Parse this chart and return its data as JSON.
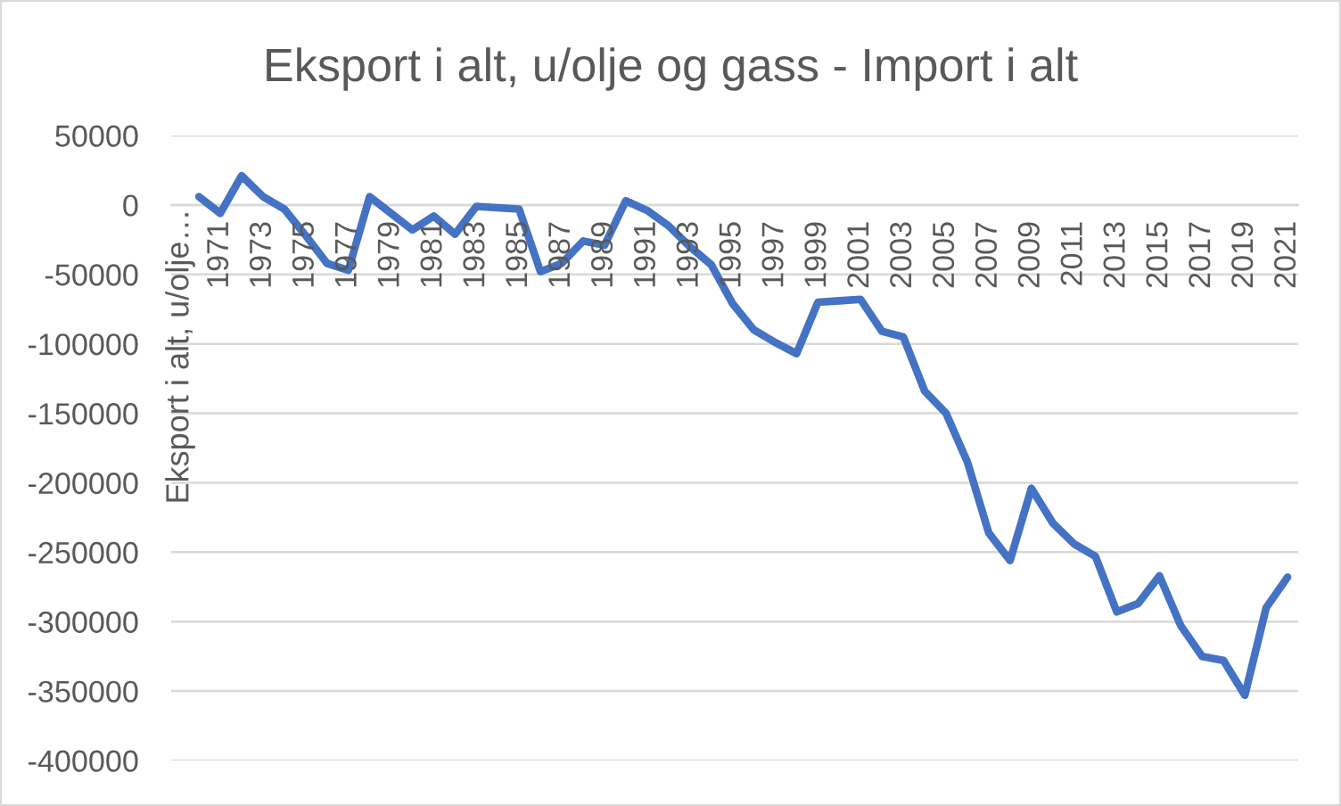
{
  "chart_data": {
    "type": "line",
    "title": "Eksport i alt, u/olje og gass - Import i alt",
    "ylabel": "Eksport i alt, u/olje…",
    "categories": [
      null,
      "1971",
      null,
      "1973",
      null,
      "1975",
      null,
      "1977",
      null,
      "1979",
      null,
      "1981",
      null,
      "1983",
      null,
      "1985",
      null,
      "1987",
      null,
      "1989",
      null,
      "1991",
      null,
      "1993",
      null,
      "1995",
      null,
      "1997",
      null,
      "1999",
      null,
      "2001",
      null,
      "2003",
      null,
      "2005",
      null,
      "2007",
      null,
      "2009",
      null,
      "2011",
      null,
      "2013",
      null,
      "2015",
      null,
      "2017",
      null,
      "2019",
      null,
      "2021"
    ],
    "series": [
      {
        "color": "#4472c4",
        "values": [
          6000,
          -6000,
          21000,
          6000,
          -3000,
          -22000,
          -42000,
          -47000,
          6000,
          -6000,
          -18000,
          -8000,
          -21000,
          -1000,
          -2000,
          -3000,
          -48000,
          -42000,
          -26000,
          -29000,
          3000,
          -4000,
          -15000,
          -30000,
          -43000,
          -71000,
          -90000,
          -99000,
          -107000,
          -70000,
          -69000,
          -68000,
          -91000,
          -95000,
          -134000,
          -150000,
          -185000,
          -236000,
          -256000,
          -204000,
          -229000,
          -244000,
          -253000,
          -293000,
          -287000,
          -267000,
          -303000,
          -325000,
          -328000,
          -353000,
          -290000,
          -268000
        ]
      }
    ],
    "ylim": [
      -400000,
      50000
    ],
    "yticks": [
      -400000,
      -350000,
      -300000,
      -250000,
      -200000,
      -150000,
      -100000,
      -50000,
      0,
      50000
    ],
    "grid": "y",
    "line_style": "solid"
  }
}
